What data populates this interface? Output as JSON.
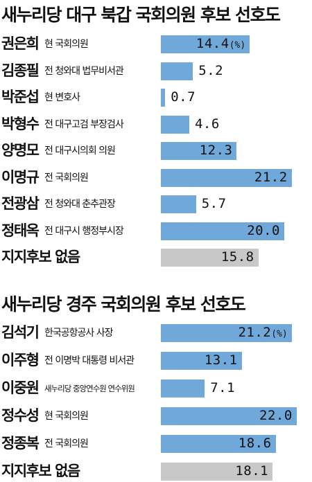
{
  "chart_data": [
    {
      "type": "bar",
      "title": "새누리당 대구 북갑 국회의원 후보 선호도",
      "unit": "(%)",
      "categories": [
        "권은희",
        "김종필",
        "박준섭",
        "박형수",
        "양명모",
        "이명규",
        "전광삼",
        "정태옥",
        "지지후보 없음"
      ],
      "descriptions": [
        "현 국회의원",
        "전 청와대 법무비서관",
        "현 변호사",
        "전 대구고검 부장검사",
        "전 대구시의회 의원",
        "전 국회의원",
        "전 청와대 춘추관장",
        "전 대구시 행정부시장",
        ""
      ],
      "values": [
        14.4,
        5.2,
        0.7,
        4.6,
        12.3,
        21.2,
        5.7,
        20.0,
        15.8
      ],
      "labels": [
        "14.4",
        "5.2",
        "0.7",
        "4.6",
        "12.3",
        "21.2",
        "5.7",
        "20.0",
        "15.8"
      ],
      "highlight": [
        true,
        true,
        true,
        true,
        true,
        true,
        true,
        true,
        false
      ],
      "colors": {
        "candidate": "#6fa8d9",
        "none": "#c8c8c8"
      }
    },
    {
      "type": "bar",
      "title": "새누리당 경주 국회의원 후보 선호도",
      "unit": "(%)",
      "categories": [
        "김석기",
        "이주형",
        "이중원",
        "정수성",
        "정종복",
        "지지후보 없음"
      ],
      "descriptions": [
        "한국공항공사 사장",
        "전 이명박 대통령 비서관",
        "새누리당 중앙연수원 연수위원",
        "현 국회의원",
        "전 국회의원",
        ""
      ],
      "values": [
        21.2,
        13.1,
        7.1,
        22.0,
        18.6,
        18.1
      ],
      "labels": [
        "21.2",
        "13.1",
        "7.1",
        "22.0",
        "18.6",
        "18.1"
      ],
      "highlight": [
        true,
        true,
        true,
        true,
        true,
        false
      ],
      "colors": {
        "candidate": "#6fa8d9",
        "none": "#c8c8c8"
      }
    }
  ]
}
